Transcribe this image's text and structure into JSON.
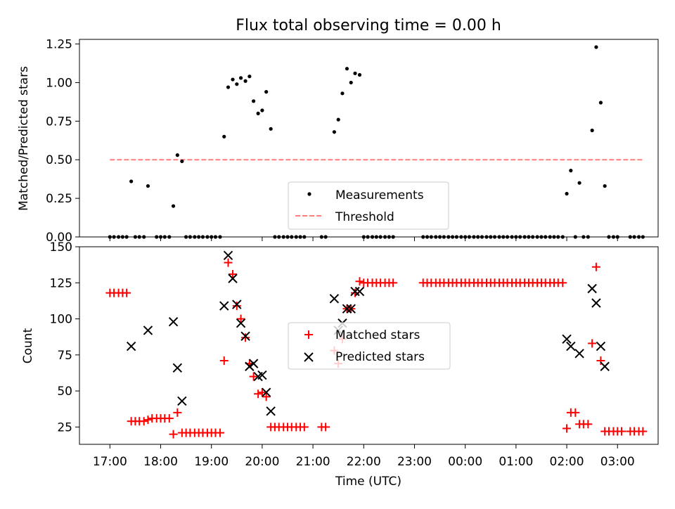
{
  "chart_data": [
    {
      "type": "scatter",
      "title": "Flux total observing time = 0.00 h",
      "xlabel": "",
      "ylabel": "Matched/Predicted stars",
      "xlim": [
        -0.6,
        10.8
      ],
      "ylim": [
        0,
        1.28
      ],
      "yticks": [
        0,
        0.25,
        0.5,
        0.75,
        1.0,
        1.25
      ],
      "ytick_labels": [
        "0.00",
        "0.25",
        "0.50",
        "0.75",
        "1.00",
        "1.25"
      ],
      "legend": {
        "location": "lower-center",
        "entries": [
          "Measurements",
          "Threshold"
        ]
      },
      "threshold": {
        "name": "Threshold",
        "value": 0.5,
        "x": [
          0.0,
          10.5
        ],
        "color": "#ff7f7f"
      },
      "series": [
        {
          "name": "Measurements",
          "marker": "dot",
          "color": "#000000",
          "points": [
            [
              0.0,
              0
            ],
            [
              0.08,
              0
            ],
            [
              0.17,
              0
            ],
            [
              0.25,
              0
            ],
            [
              0.33,
              0
            ],
            [
              0.42,
              0.36
            ],
            [
              0.5,
              0
            ],
            [
              0.58,
              0
            ],
            [
              0.67,
              0
            ],
            [
              0.75,
              0.33
            ],
            [
              0.92,
              0
            ],
            [
              1.0,
              0
            ],
            [
              1.08,
              0
            ],
            [
              1.17,
              0
            ],
            [
              1.25,
              0.2
            ],
            [
              1.33,
              0.53
            ],
            [
              1.42,
              0.49
            ],
            [
              1.5,
              0
            ],
            [
              1.58,
              0
            ],
            [
              1.67,
              0
            ],
            [
              1.75,
              0
            ],
            [
              1.83,
              0
            ],
            [
              1.92,
              0
            ],
            [
              2.0,
              0
            ],
            [
              2.08,
              0
            ],
            [
              2.17,
              0
            ],
            [
              2.25,
              0.65
            ],
            [
              2.33,
              0.97
            ],
            [
              2.42,
              1.02
            ],
            [
              2.5,
              0.99
            ],
            [
              2.58,
              1.03
            ],
            [
              2.67,
              1.01
            ],
            [
              2.75,
              1.04
            ],
            [
              2.83,
              0.88
            ],
            [
              2.92,
              0.8
            ],
            [
              3.0,
              0.82
            ],
            [
              3.08,
              0.94
            ],
            [
              3.17,
              0.7
            ],
            [
              3.25,
              0
            ],
            [
              3.33,
              0
            ],
            [
              3.42,
              0
            ],
            [
              3.5,
              0
            ],
            [
              3.58,
              0
            ],
            [
              3.67,
              0
            ],
            [
              3.75,
              0
            ],
            [
              3.83,
              0
            ],
            [
              4.17,
              0
            ],
            [
              4.25,
              0
            ],
            [
              4.42,
              0.68
            ],
            [
              4.5,
              0.76
            ],
            [
              4.58,
              0.93
            ],
            [
              4.67,
              1.09
            ],
            [
              4.75,
              1.0
            ],
            [
              4.83,
              1.06
            ],
            [
              4.92,
              1.05
            ],
            [
              5.0,
              0
            ],
            [
              5.08,
              0
            ],
            [
              5.17,
              0
            ],
            [
              5.25,
              0
            ],
            [
              5.33,
              0
            ],
            [
              5.42,
              0
            ],
            [
              5.5,
              0
            ],
            [
              5.58,
              0
            ],
            [
              6.17,
              0
            ],
            [
              6.25,
              0
            ],
            [
              6.33,
              0
            ],
            [
              6.42,
              0
            ],
            [
              6.5,
              0
            ],
            [
              6.58,
              0
            ],
            [
              6.67,
              0
            ],
            [
              6.75,
              0
            ],
            [
              6.83,
              0
            ],
            [
              6.92,
              0
            ],
            [
              7.0,
              0
            ],
            [
              7.08,
              0
            ],
            [
              7.17,
              0
            ],
            [
              7.25,
              0
            ],
            [
              7.33,
              0
            ],
            [
              7.42,
              0
            ],
            [
              7.5,
              0
            ],
            [
              7.58,
              0
            ],
            [
              7.67,
              0
            ],
            [
              7.75,
              0
            ],
            [
              7.83,
              0
            ],
            [
              7.92,
              0
            ],
            [
              8.0,
              0
            ],
            [
              8.08,
              0
            ],
            [
              8.17,
              0
            ],
            [
              8.25,
              0
            ],
            [
              8.33,
              0
            ],
            [
              8.42,
              0
            ],
            [
              8.5,
              0
            ],
            [
              8.58,
              0
            ],
            [
              8.67,
              0
            ],
            [
              8.75,
              0
            ],
            [
              8.83,
              0
            ],
            [
              8.92,
              0
            ],
            [
              9.0,
              0.28
            ],
            [
              9.08,
              0.43
            ],
            [
              9.17,
              0
            ],
            [
              9.25,
              0.35
            ],
            [
              9.33,
              0
            ],
            [
              9.42,
              0
            ],
            [
              9.5,
              0.69
            ],
            [
              9.58,
              1.23
            ],
            [
              9.67,
              0.87
            ],
            [
              9.75,
              0.33
            ],
            [
              9.83,
              0
            ],
            [
              9.92,
              0
            ],
            [
              10.0,
              0
            ],
            [
              10.25,
              0
            ],
            [
              10.33,
              0
            ],
            [
              10.42,
              0
            ],
            [
              10.5,
              0
            ]
          ]
        }
      ]
    },
    {
      "type": "scatter",
      "title": "",
      "xlabel": "Time (UTC)",
      "ylabel": "Count",
      "xlim": [
        -0.6,
        10.8
      ],
      "ylim": [
        13,
        150
      ],
      "yticks": [
        25,
        50,
        75,
        100,
        125,
        150
      ],
      "ytick_labels": [
        "25",
        "50",
        "75",
        "100",
        "125",
        "150"
      ],
      "xticks": [
        0,
        1,
        2,
        3,
        4,
        5,
        6,
        7,
        8,
        9,
        10
      ],
      "xtick_labels": [
        "17:00",
        "18:00",
        "19:00",
        "20:00",
        "21:00",
        "22:00",
        "23:00",
        "00:00",
        "01:00",
        "02:00",
        "03:00"
      ],
      "legend": {
        "location": "center",
        "entries": [
          "Matched stars",
          "Predicted stars"
        ]
      },
      "series": [
        {
          "name": "Matched stars",
          "marker": "plus",
          "color": "#ff0000",
          "points": [
            [
              0.0,
              118
            ],
            [
              0.08,
              118
            ],
            [
              0.17,
              118
            ],
            [
              0.25,
              118
            ],
            [
              0.33,
              118
            ],
            [
              0.42,
              29
            ],
            [
              0.5,
              29
            ],
            [
              0.58,
              29
            ],
            [
              0.67,
              29
            ],
            [
              0.75,
              30
            ],
            [
              0.83,
              31
            ],
            [
              0.92,
              31
            ],
            [
              1.0,
              31
            ],
            [
              1.08,
              31
            ],
            [
              1.17,
              31
            ],
            [
              1.25,
              20
            ],
            [
              1.33,
              35
            ],
            [
              1.42,
              21
            ],
            [
              1.5,
              21
            ],
            [
              1.58,
              21
            ],
            [
              1.67,
              21
            ],
            [
              1.75,
              21
            ],
            [
              1.83,
              21
            ],
            [
              1.92,
              21
            ],
            [
              2.0,
              21
            ],
            [
              2.08,
              21
            ],
            [
              2.17,
              21
            ],
            [
              2.25,
              71
            ],
            [
              2.33,
              139
            ],
            [
              2.42,
              131
            ],
            [
              2.5,
              109
            ],
            [
              2.58,
              100
            ],
            [
              2.67,
              87
            ],
            [
              2.75,
              69
            ],
            [
              2.83,
              60
            ],
            [
              2.92,
              48
            ],
            [
              3.0,
              49
            ],
            [
              3.08,
              46
            ],
            [
              3.17,
              25
            ],
            [
              3.25,
              25
            ],
            [
              3.33,
              25
            ],
            [
              3.42,
              25
            ],
            [
              3.5,
              25
            ],
            [
              3.58,
              25
            ],
            [
              3.67,
              25
            ],
            [
              3.75,
              25
            ],
            [
              3.83,
              25
            ],
            [
              4.17,
              25
            ],
            [
              4.25,
              25
            ],
            [
              4.42,
              78
            ],
            [
              4.5,
              69
            ],
            [
              4.58,
              86
            ],
            [
              4.67,
              107
            ],
            [
              4.75,
              107
            ],
            [
              4.83,
              118
            ],
            [
              4.92,
              126
            ],
            [
              5.0,
              125
            ],
            [
              5.08,
              125
            ],
            [
              5.17,
              125
            ],
            [
              5.25,
              125
            ],
            [
              5.33,
              125
            ],
            [
              5.42,
              125
            ],
            [
              5.5,
              125
            ],
            [
              5.58,
              125
            ],
            [
              6.17,
              125
            ],
            [
              6.25,
              125
            ],
            [
              6.33,
              125
            ],
            [
              6.42,
              125
            ],
            [
              6.5,
              125
            ],
            [
              6.58,
              125
            ],
            [
              6.67,
              125
            ],
            [
              6.75,
              125
            ],
            [
              6.83,
              125
            ],
            [
              6.92,
              125
            ],
            [
              7.0,
              125
            ],
            [
              7.08,
              125
            ],
            [
              7.17,
              125
            ],
            [
              7.25,
              125
            ],
            [
              7.33,
              125
            ],
            [
              7.42,
              125
            ],
            [
              7.5,
              125
            ],
            [
              7.58,
              125
            ],
            [
              7.67,
              125
            ],
            [
              7.75,
              125
            ],
            [
              7.83,
              125
            ],
            [
              7.92,
              125
            ],
            [
              8.0,
              125
            ],
            [
              8.08,
              125
            ],
            [
              8.17,
              125
            ],
            [
              8.25,
              125
            ],
            [
              8.33,
              125
            ],
            [
              8.42,
              125
            ],
            [
              8.5,
              125
            ],
            [
              8.58,
              125
            ],
            [
              8.67,
              125
            ],
            [
              8.75,
              125
            ],
            [
              8.83,
              125
            ],
            [
              8.92,
              125
            ],
            [
              9.0,
              24
            ],
            [
              9.08,
              35
            ],
            [
              9.17,
              35
            ],
            [
              9.25,
              27
            ],
            [
              9.33,
              27
            ],
            [
              9.42,
              27
            ],
            [
              9.5,
              83
            ],
            [
              9.58,
              136
            ],
            [
              9.67,
              71
            ],
            [
              9.75,
              22
            ],
            [
              9.83,
              22
            ],
            [
              9.92,
              22
            ],
            [
              10.0,
              22
            ],
            [
              10.08,
              22
            ],
            [
              10.25,
              22
            ],
            [
              10.33,
              22
            ],
            [
              10.42,
              22
            ],
            [
              10.5,
              22
            ]
          ]
        },
        {
          "name": "Predicted stars",
          "marker": "x",
          "color": "#000000",
          "points": [
            [
              0.42,
              81
            ],
            [
              0.75,
              92
            ],
            [
              1.25,
              98
            ],
            [
              1.33,
              66
            ],
            [
              1.42,
              43
            ],
            [
              2.25,
              109
            ],
            [
              2.33,
              144
            ],
            [
              2.42,
              128
            ],
            [
              2.5,
              110
            ],
            [
              2.58,
              97
            ],
            [
              2.67,
              88
            ],
            [
              2.75,
              67
            ],
            [
              2.83,
              69
            ],
            [
              2.92,
              60
            ],
            [
              3.0,
              61
            ],
            [
              3.08,
              49
            ],
            [
              3.17,
              36
            ],
            [
              4.42,
              114
            ],
            [
              4.5,
              92
            ],
            [
              4.58,
              97
            ],
            [
              4.67,
              107
            ],
            [
              4.75,
              107
            ],
            [
              4.83,
              119
            ],
            [
              4.92,
              119
            ],
            [
              9.0,
              86
            ],
            [
              9.08,
              81
            ],
            [
              9.25,
              76
            ],
            [
              9.5,
              121
            ],
            [
              9.58,
              111
            ],
            [
              9.67,
              81
            ],
            [
              9.75,
              67
            ]
          ]
        }
      ]
    }
  ]
}
